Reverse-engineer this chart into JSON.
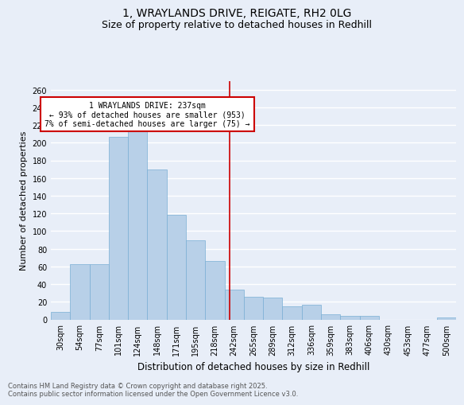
{
  "title1": "1, WRAYLANDS DRIVE, REIGATE, RH2 0LG",
  "title2": "Size of property relative to detached houses in Redhill",
  "xlabel": "Distribution of detached houses by size in Redhill",
  "ylabel": "Number of detached properties",
  "categories": [
    "30sqm",
    "54sqm",
    "77sqm",
    "101sqm",
    "124sqm",
    "148sqm",
    "171sqm",
    "195sqm",
    "218sqm",
    "242sqm",
    "265sqm",
    "289sqm",
    "312sqm",
    "336sqm",
    "359sqm",
    "383sqm",
    "406sqm",
    "430sqm",
    "453sqm",
    "477sqm",
    "500sqm"
  ],
  "values": [
    9,
    63,
    63,
    207,
    215,
    170,
    118,
    90,
    66,
    34,
    26,
    25,
    15,
    17,
    6,
    4,
    4,
    0,
    0,
    0,
    2
  ],
  "bar_color": "#b8d0e8",
  "bar_edge_color": "#7aafd4",
  "background_color": "#e8eef8",
  "grid_color": "#ffffff",
  "annotation_text": "1 WRAYLANDS DRIVE: 237sqm\n← 93% of detached houses are smaller (953)\n7% of semi-detached houses are larger (75) →",
  "annotation_box_color": "#ffffff",
  "annotation_box_edge": "#cc0000",
  "vline_x": 8.77,
  "vline_color": "#cc0000",
  "ylim": [
    0,
    270
  ],
  "yticks": [
    0,
    20,
    40,
    60,
    80,
    100,
    120,
    140,
    160,
    180,
    200,
    220,
    240,
    260
  ],
  "footnote": "Contains HM Land Registry data © Crown copyright and database right 2025.\nContains public sector information licensed under the Open Government Licence v3.0.",
  "title_fontsize": 10,
  "subtitle_fontsize": 9,
  "tick_fontsize": 7,
  "ylabel_fontsize": 8,
  "xlabel_fontsize": 8.5,
  "footnote_fontsize": 6,
  "annot_fontsize": 7
}
